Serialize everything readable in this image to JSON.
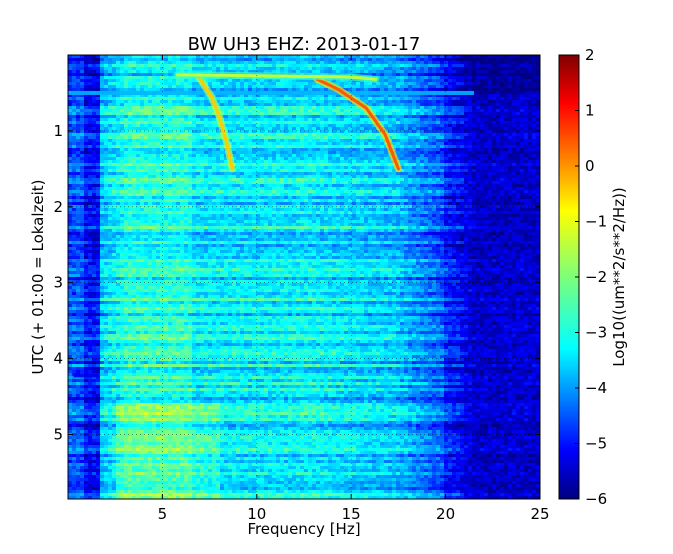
{
  "chart_data": {
    "type": "heatmap",
    "title": "BW UH3 EHZ: 2013-01-17",
    "xlabel": "Frequency [Hz]",
    "ylabel": "UTC (+ 01:00 = Lokalzeit)",
    "xlim": [
      0,
      25
    ],
    "ylim": [
      5.85,
      0
    ],
    "x_ticks": [
      5,
      10,
      15,
      20,
      25
    ],
    "y_ticks": [
      1,
      2,
      3,
      4,
      5
    ],
    "grid": true,
    "colorscale": "jet",
    "colorbar": {
      "label": "Log10((um**2/s**2/Hz))",
      "range": [
        -6,
        2
      ],
      "ticks": [
        -6,
        -5,
        -4,
        -3,
        -2,
        -1,
        0,
        1,
        2
      ]
    },
    "features": [
      {
        "x": [
          6.9,
          7.6,
          8.0,
          8.4,
          8.7
        ],
        "y": [
          0.28,
          0.55,
          0.8,
          1.15,
          1.5
        ],
        "level": -0.6
      },
      {
        "x": [
          13.2,
          14.3,
          15.8,
          16.8,
          17.5
        ],
        "y": [
          0.32,
          0.45,
          0.7,
          1.05,
          1.5
        ],
        "level": 0.3
      },
      {
        "x": [
          5.8,
          9.0,
          12.0,
          15.0,
          16.3
        ],
        "y": [
          0.26,
          0.27,
          0.28,
          0.29,
          0.32
        ],
        "level": -1.5
      }
    ],
    "bands": [
      {
        "x_range": [
          0.3,
          1.6
        ],
        "y": 4.22,
        "level": -5.2
      },
      {
        "x_range": [
          0,
          21.5
        ],
        "y": 0.5,
        "level": -3.6
      }
    ]
  }
}
